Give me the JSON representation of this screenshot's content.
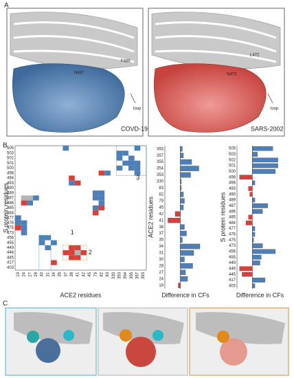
{
  "panels": {
    "a": {
      "label": "A",
      "left": {
        "caption": "COVD-19",
        "residue_labels": [
          "F486",
          "N487"
        ],
        "arrow_label": "loop"
      },
      "right": {
        "caption": "SARS-2002",
        "residue_labels": [
          "L472",
          "N473"
        ],
        "arrow_label": "loop"
      }
    },
    "b_label": "B",
    "c_label": "C"
  },
  "chart_data": [
    {
      "type": "heatmap",
      "xlabel": "ACE2 residues",
      "ylabel": "S protein residues",
      "x_categories": [
        "19",
        "24",
        "27",
        "28",
        "30",
        "31",
        "34",
        "35",
        "37",
        "38",
        "41",
        "42",
        "45",
        "79",
        "82",
        "83",
        "330",
        "353",
        "354",
        "355",
        "357",
        "393"
      ],
      "y_categories": [
        "505",
        "503",
        "502",
        "501",
        "500",
        "498",
        "494",
        "493",
        "490",
        "489",
        "487",
        "486",
        "485",
        "484",
        "477",
        "476",
        "475",
        "473",
        "456",
        "455",
        "449",
        "446",
        "445",
        "417",
        "403"
      ],
      "colors": {
        "positive": "#4f7fb8",
        "negative": "#d9403a",
        "neutral": "#b4b4b4"
      },
      "cells": [
        {
          "x": "357",
          "y": "505",
          "value": 1
        },
        {
          "x": "353",
          "y": "503",
          "value": 1
        },
        {
          "x": "354",
          "y": "503",
          "value": 1
        },
        {
          "x": "353",
          "y": "502",
          "value": 1
        },
        {
          "x": "355",
          "y": "502",
          "value": 1
        },
        {
          "x": "354",
          "y": "501",
          "value": 1
        },
        {
          "x": "355",
          "y": "501",
          "value": 1
        },
        {
          "x": "357",
          "y": "501",
          "value": 1
        },
        {
          "x": "353",
          "y": "500",
          "value": 1
        },
        {
          "x": "355",
          "y": "500",
          "value": 1
        },
        {
          "x": "357",
          "y": "500",
          "value": 1
        },
        {
          "x": "357",
          "y": "498",
          "value": 1
        },
        {
          "x": "37",
          "y": "505",
          "value": 1
        },
        {
          "x": "82",
          "y": "498",
          "value": -1
        },
        {
          "x": "83",
          "y": "498",
          "value": 1
        },
        {
          "x": "38",
          "y": "494",
          "value": -1
        },
        {
          "x": "38",
          "y": "493",
          "value": 1
        },
        {
          "x": "41",
          "y": "493",
          "value": -1
        },
        {
          "x": "24",
          "y": "487",
          "value": 0
        },
        {
          "x": "27",
          "y": "487",
          "value": 0
        },
        {
          "x": "28",
          "y": "487",
          "value": 1
        },
        {
          "x": "24",
          "y": "486",
          "value": -1
        },
        {
          "x": "27",
          "y": "486",
          "value": 1
        },
        {
          "x": "79",
          "y": "489",
          "value": 1
        },
        {
          "x": "82",
          "y": "489",
          "value": 1
        },
        {
          "x": "79",
          "y": "487",
          "value": 1
        },
        {
          "x": "82",
          "y": "487",
          "value": 1
        },
        {
          "x": "82",
          "y": "486",
          "value": 1
        },
        {
          "x": "79",
          "y": "485",
          "value": 1
        },
        {
          "x": "82",
          "y": "485",
          "value": -1
        },
        {
          "x": "79",
          "y": "484",
          "value": -1
        },
        {
          "x": "19",
          "y": "477",
          "value": 1
        },
        {
          "x": "19",
          "y": "476",
          "value": 1
        },
        {
          "x": "24",
          "y": "476",
          "value": 1
        },
        {
          "x": "19",
          "y": "475",
          "value": -1
        },
        {
          "x": "24",
          "y": "475",
          "value": 1
        },
        {
          "x": "24",
          "y": "473",
          "value": 1
        },
        {
          "x": "30",
          "y": "456",
          "value": 1
        },
        {
          "x": "31",
          "y": "456",
          "value": 1
        },
        {
          "x": "30",
          "y": "455",
          "value": 1
        },
        {
          "x": "34",
          "y": "455",
          "value": 1
        },
        {
          "x": "31",
          "y": "449",
          "value": 1
        },
        {
          "x": "38",
          "y": "449",
          "value": -1
        },
        {
          "x": "41",
          "y": "449",
          "value": -1
        },
        {
          "x": "37",
          "y": "446",
          "value": -1
        },
        {
          "x": "38",
          "y": "446",
          "value": -1
        },
        {
          "x": "41",
          "y": "446",
          "value": 0
        },
        {
          "x": "42",
          "y": "446",
          "value": -1
        },
        {
          "x": "38",
          "y": "445",
          "value": -1
        },
        {
          "x": "41",
          "y": "445",
          "value": -1
        },
        {
          "x": "34",
          "y": "417",
          "value": -1
        }
      ],
      "annotations": [
        "1",
        "2",
        "3"
      ]
    },
    {
      "type": "hbar",
      "xlabel": "Difference in CFs",
      "ylabel": "ACE2 residues",
      "positive_color": "#4f7fb8",
      "negative_color": "#d9403a",
      "xlim": [
        -0.75,
        1.25
      ],
      "categories": [
        "393",
        "357",
        "355",
        "354",
        "353",
        "330",
        "83",
        "82",
        "79",
        "45",
        "42",
        "41",
        "38",
        "37",
        "35",
        "34",
        "31",
        "30",
        "28",
        "27",
        "24",
        "19"
      ],
      "values": [
        0.1,
        0.15,
        0.55,
        0.9,
        0.5,
        0.05,
        0.05,
        0.15,
        0.2,
        0.15,
        -0.25,
        -0.6,
        0.2,
        0.3,
        0.1,
        0.95,
        0.65,
        0.2,
        0.6,
        0.25,
        0.35,
        -0.1
      ]
    },
    {
      "type": "hbar",
      "xlabel": "Difference in CFs",
      "ylabel": "S protein residues",
      "positive_color": "#4f7fb8",
      "negative_color": "#d9403a",
      "xlim": [
        -0.6,
        1.2
      ],
      "categories": [
        "505",
        "503",
        "502",
        "501",
        "500",
        "498",
        "494",
        "493",
        "490",
        "489",
        "487",
        "486",
        "485",
        "484",
        "477",
        "476",
        "475",
        "473",
        "456",
        "455",
        "449",
        "446",
        "445",
        "417",
        "403"
      ],
      "values": [
        0.8,
        0.2,
        1.0,
        1.0,
        0.9,
        -0.5,
        0.1,
        -0.15,
        -0.1,
        0.1,
        0.6,
        0.4,
        -0.15,
        -0.25,
        0.1,
        0.1,
        0.05,
        0.4,
        0.9,
        0.35,
        0.3,
        -0.5,
        -0.4,
        0.5,
        0.1
      ]
    }
  ]
}
